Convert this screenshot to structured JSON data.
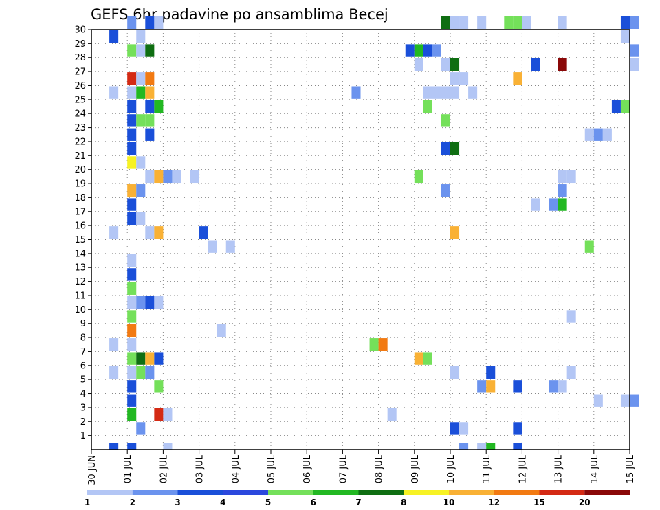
{
  "chart_data": {
    "type": "heatmap",
    "title": "GEFS 6hr padavine po ansamblima Becej",
    "y_ticks": [
      "1",
      "2",
      "3",
      "4",
      "5",
      "6",
      "7",
      "8",
      "9",
      "10",
      "11",
      "12",
      "13",
      "14",
      "15",
      "16",
      "17",
      "18",
      "19",
      "20",
      "21",
      "22",
      "23",
      "24",
      "25",
      "26",
      "27",
      "28",
      "29",
      "30"
    ],
    "ylim": [
      0,
      30
    ],
    "x_ticks": [
      "30 JUN",
      "01 JUL",
      "02 JUL",
      "03 JUL",
      "04 JUL",
      "05 JUL",
      "06 JUL",
      "07 JUL",
      "08 JUL",
      "09 JUL",
      "10 JUL",
      "11 JUL",
      "12 JUL",
      "13 JUL",
      "14 JUL",
      "15 JUL"
    ],
    "xlim": [
      0,
      15
    ],
    "grid": true,
    "colorbar": {
      "labels": [
        "1",
        "2",
        "3",
        "4",
        "5",
        "6",
        "7",
        "8",
        "10",
        "12",
        "15",
        "20"
      ],
      "colors": [
        "#b3c6f5",
        "#6b93ee",
        "#1a4fd9",
        "#2b48dd",
        "#74e05a",
        "#22b822",
        "#0f6e12",
        "#f7f224",
        "#f9b135",
        "#f27a12",
        "#d42a14",
        "#8a0808"
      ]
    },
    "cells": [
      {
        "member": 30,
        "step": 4,
        "level": 1
      },
      {
        "member": 30,
        "step": 6,
        "level": 2
      },
      {
        "member": 30,
        "step": 7,
        "level": 0
      },
      {
        "member": 30,
        "step": 39,
        "level": 6
      },
      {
        "member": 30,
        "step": 40,
        "level": 0
      },
      {
        "member": 30,
        "step": 41,
        "level": 0
      },
      {
        "member": 30,
        "step": 43,
        "level": 0
      },
      {
        "member": 30,
        "step": 46,
        "level": 4
      },
      {
        "member": 30,
        "step": 47,
        "level": 4
      },
      {
        "member": 30,
        "step": 48,
        "level": 0
      },
      {
        "member": 30,
        "step": 52,
        "level": 0
      },
      {
        "member": 30,
        "step": 59,
        "level": 2
      },
      {
        "member": 30,
        "step": 60,
        "level": 1
      },
      {
        "member": 29,
        "step": 2,
        "level": 2
      },
      {
        "member": 29,
        "step": 5,
        "level": 0
      },
      {
        "member": 29,
        "step": 59,
        "level": 0
      },
      {
        "member": 28,
        "step": 4,
        "level": 4
      },
      {
        "member": 28,
        "step": 5,
        "level": 0
      },
      {
        "member": 28,
        "step": 6,
        "level": 6
      },
      {
        "member": 28,
        "step": 35,
        "level": 2
      },
      {
        "member": 28,
        "step": 36,
        "level": 5
      },
      {
        "member": 28,
        "step": 37,
        "level": 2
      },
      {
        "member": 28,
        "step": 38,
        "level": 1
      },
      {
        "member": 28,
        "step": 60,
        "level": 1
      },
      {
        "member": 27,
        "step": 36,
        "level": 0
      },
      {
        "member": 27,
        "step": 39,
        "level": 0
      },
      {
        "member": 27,
        "step": 40,
        "level": 6
      },
      {
        "member": 27,
        "step": 49,
        "level": 2
      },
      {
        "member": 27,
        "step": 52,
        "level": 11
      },
      {
        "member": 27,
        "step": 60,
        "level": 0
      },
      {
        "member": 26,
        "step": 4,
        "level": 10
      },
      {
        "member": 26,
        "step": 5,
        "level": 0
      },
      {
        "member": 26,
        "step": 6,
        "level": 9
      },
      {
        "member": 26,
        "step": 40,
        "level": 0
      },
      {
        "member": 26,
        "step": 41,
        "level": 0
      },
      {
        "member": 26,
        "step": 47,
        "level": 8
      },
      {
        "member": 25,
        "step": 2,
        "level": 0
      },
      {
        "member": 25,
        "step": 4,
        "level": 0
      },
      {
        "member": 25,
        "step": 5,
        "level": 5
      },
      {
        "member": 25,
        "step": 6,
        "level": 8
      },
      {
        "member": 25,
        "step": 29,
        "level": 1
      },
      {
        "member": 25,
        "step": 37,
        "level": 0
      },
      {
        "member": 25,
        "step": 38,
        "level": 0
      },
      {
        "member": 25,
        "step": 39,
        "level": 0
      },
      {
        "member": 25,
        "step": 40,
        "level": 0
      },
      {
        "member": 25,
        "step": 42,
        "level": 0
      },
      {
        "member": 24,
        "step": 4,
        "level": 2
      },
      {
        "member": 24,
        "step": 6,
        "level": 2
      },
      {
        "member": 24,
        "step": 7,
        "level": 5
      },
      {
        "member": 24,
        "step": 37,
        "level": 4
      },
      {
        "member": 24,
        "step": 58,
        "level": 2
      },
      {
        "member": 24,
        "step": 59,
        "level": 4
      },
      {
        "member": 23,
        "step": 4,
        "level": 2
      },
      {
        "member": 23,
        "step": 5,
        "level": 4
      },
      {
        "member": 23,
        "step": 6,
        "level": 4
      },
      {
        "member": 23,
        "step": 39,
        "level": 4
      },
      {
        "member": 22,
        "step": 4,
        "level": 2
      },
      {
        "member": 22,
        "step": 6,
        "level": 2
      },
      {
        "member": 22,
        "step": 55,
        "level": 0
      },
      {
        "member": 22,
        "step": 56,
        "level": 1
      },
      {
        "member": 22,
        "step": 57,
        "level": 0
      },
      {
        "member": 21,
        "step": 4,
        "level": 2
      },
      {
        "member": 21,
        "step": 39,
        "level": 2
      },
      {
        "member": 21,
        "step": 40,
        "level": 6
      },
      {
        "member": 20,
        "step": 4,
        "level": 7
      },
      {
        "member": 20,
        "step": 5,
        "level": 0
      },
      {
        "member": 19,
        "step": 6,
        "level": 0
      },
      {
        "member": 19,
        "step": 7,
        "level": 8
      },
      {
        "member": 19,
        "step": 8,
        "level": 1
      },
      {
        "member": 19,
        "step": 9,
        "level": 0
      },
      {
        "member": 19,
        "step": 11,
        "level": 0
      },
      {
        "member": 19,
        "step": 36,
        "level": 4
      },
      {
        "member": 19,
        "step": 52,
        "level": 0
      },
      {
        "member": 19,
        "step": 53,
        "level": 0
      },
      {
        "member": 18,
        "step": 4,
        "level": 8
      },
      {
        "member": 18,
        "step": 5,
        "level": 1
      },
      {
        "member": 18,
        "step": 39,
        "level": 1
      },
      {
        "member": 18,
        "step": 52,
        "level": 1
      },
      {
        "member": 17,
        "step": 4,
        "level": 2
      },
      {
        "member": 17,
        "step": 49,
        "level": 0
      },
      {
        "member": 17,
        "step": 51,
        "level": 1
      },
      {
        "member": 17,
        "step": 52,
        "level": 5
      },
      {
        "member": 16,
        "step": 4,
        "level": 2
      },
      {
        "member": 16,
        "step": 5,
        "level": 0
      },
      {
        "member": 15,
        "step": 2,
        "level": 0
      },
      {
        "member": 15,
        "step": 6,
        "level": 0
      },
      {
        "member": 15,
        "step": 7,
        "level": 8
      },
      {
        "member": 15,
        "step": 12,
        "level": 2
      },
      {
        "member": 15,
        "step": 40,
        "level": 8
      },
      {
        "member": 14,
        "step": 13,
        "level": 0
      },
      {
        "member": 14,
        "step": 15,
        "level": 0
      },
      {
        "member": 14,
        "step": 55,
        "level": 4
      },
      {
        "member": 13,
        "step": 4,
        "level": 0
      },
      {
        "member": 12,
        "step": 4,
        "level": 2
      },
      {
        "member": 11,
        "step": 4,
        "level": 4
      },
      {
        "member": 10,
        "step": 4,
        "level": 0
      },
      {
        "member": 10,
        "step": 5,
        "level": 1
      },
      {
        "member": 10,
        "step": 6,
        "level": 2
      },
      {
        "member": 10,
        "step": 7,
        "level": 0
      },
      {
        "member": 9,
        "step": 4,
        "level": 4
      },
      {
        "member": 9,
        "step": 53,
        "level": 0
      },
      {
        "member": 8,
        "step": 4,
        "level": 9
      },
      {
        "member": 8,
        "step": 14,
        "level": 0
      },
      {
        "member": 7,
        "step": 2,
        "level": 0
      },
      {
        "member": 7,
        "step": 4,
        "level": 0
      },
      {
        "member": 7,
        "step": 31,
        "level": 4
      },
      {
        "member": 7,
        "step": 32,
        "level": 9
      },
      {
        "member": 6,
        "step": 4,
        "level": 4
      },
      {
        "member": 6,
        "step": 5,
        "level": 6
      },
      {
        "member": 6,
        "step": 6,
        "level": 8
      },
      {
        "member": 6,
        "step": 7,
        "level": 2
      },
      {
        "member": 6,
        "step": 36,
        "level": 8
      },
      {
        "member": 6,
        "step": 37,
        "level": 4
      },
      {
        "member": 5,
        "step": 2,
        "level": 0
      },
      {
        "member": 5,
        "step": 4,
        "level": 0
      },
      {
        "member": 5,
        "step": 5,
        "level": 4
      },
      {
        "member": 5,
        "step": 6,
        "level": 1
      },
      {
        "member": 5,
        "step": 40,
        "level": 0
      },
      {
        "member": 5,
        "step": 44,
        "level": 2
      },
      {
        "member": 5,
        "step": 53,
        "level": 0
      },
      {
        "member": 4,
        "step": 4,
        "level": 2
      },
      {
        "member": 4,
        "step": 7,
        "level": 4
      },
      {
        "member": 4,
        "step": 43,
        "level": 1
      },
      {
        "member": 4,
        "step": 44,
        "level": 8
      },
      {
        "member": 4,
        "step": 47,
        "level": 2
      },
      {
        "member": 4,
        "step": 51,
        "level": 1
      },
      {
        "member": 4,
        "step": 52,
        "level": 0
      },
      {
        "member": 3,
        "step": 4,
        "level": 2
      },
      {
        "member": 3,
        "step": 56,
        "level": 0
      },
      {
        "member": 3,
        "step": 59,
        "level": 0
      },
      {
        "member": 3,
        "step": 60,
        "level": 1
      },
      {
        "member": 2,
        "step": 4,
        "level": 5
      },
      {
        "member": 2,
        "step": 7,
        "level": 10
      },
      {
        "member": 2,
        "step": 8,
        "level": 0
      },
      {
        "member": 2,
        "step": 33,
        "level": 0
      },
      {
        "member": 1,
        "step": 5,
        "level": 1
      },
      {
        "member": 1,
        "step": 40,
        "level": 2
      },
      {
        "member": 1,
        "step": 41,
        "level": 0
      },
      {
        "member": 1,
        "step": 47,
        "level": 2
      },
      {
        "member": 0,
        "step": 2,
        "level": 2
      },
      {
        "member": 0,
        "step": 4,
        "level": 2
      },
      {
        "member": 0,
        "step": 8,
        "level": 0
      },
      {
        "member": 0,
        "step": 41,
        "level": 1
      },
      {
        "member": 0,
        "step": 43,
        "level": 0
      },
      {
        "member": 0,
        "step": 44,
        "level": 5
      },
      {
        "member": 0,
        "step": 47,
        "level": 2
      }
    ]
  }
}
